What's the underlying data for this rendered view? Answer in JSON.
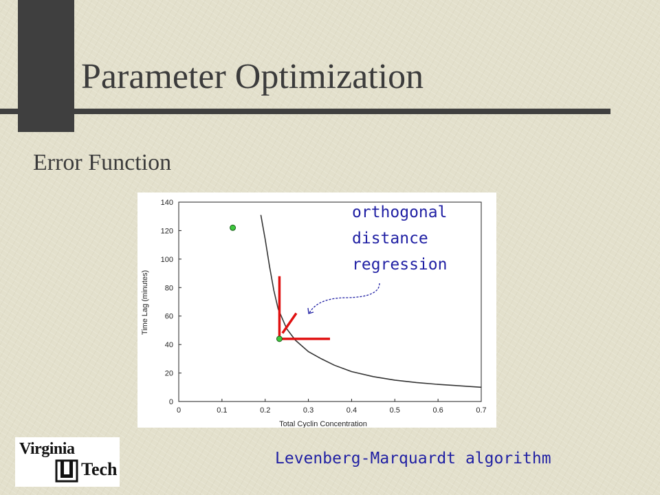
{
  "slide": {
    "title": "Parameter Optimization",
    "subtitle": "Error Function",
    "annotation": "orthogonal\ndistance\nregression",
    "footer": "Levenberg-Marquardt algorithm",
    "colors": {
      "background": "#e3e0cc",
      "accent_bar": "#3f3f3f",
      "title_text": "#3b3b3b",
      "annotation_text": "#1f1fa3",
      "residual_segments": "#e01010",
      "data_point": "#3ec83e"
    }
  },
  "logo": {
    "line1": "Virginia",
    "line2": "Tech"
  },
  "chart_data": {
    "type": "line",
    "xlabel": "Total Cyclin Concentration",
    "ylabel": "Time Lag (minutes)",
    "xlim": [
      0,
      0.7
    ],
    "ylim": [
      0,
      140
    ],
    "x_ticks": [
      "0",
      "0.1",
      "0.2",
      "0.3",
      "0.4",
      "0.5",
      "0.6",
      "0.7"
    ],
    "y_ticks": [
      "0",
      "20",
      "40",
      "60",
      "80",
      "100",
      "120",
      "140"
    ],
    "curve": {
      "x": [
        0.19,
        0.2,
        0.21,
        0.22,
        0.23,
        0.25,
        0.27,
        0.3,
        0.33,
        0.36,
        0.4,
        0.45,
        0.5,
        0.55,
        0.6,
        0.65,
        0.7
      ],
      "y": [
        131,
        114,
        95,
        78,
        65,
        51,
        43,
        35,
        30,
        25.5,
        21,
        17.5,
        15,
        13.3,
        12,
        11,
        10
      ]
    },
    "points": [
      {
        "x": 0.125,
        "y": 122
      },
      {
        "x": 0.233,
        "y": 44
      }
    ],
    "residuals": [
      {
        "kind": "vertical",
        "x1": 0.233,
        "y1": 44,
        "x2": 0.233,
        "y2": 88
      },
      {
        "kind": "horizontal",
        "x1": 0.233,
        "y1": 44,
        "x2": 0.35,
        "y2": 44
      },
      {
        "kind": "orthogonal",
        "x1": 0.24,
        "y1": 48,
        "x2": 0.272,
        "y2": 62
      }
    ]
  }
}
